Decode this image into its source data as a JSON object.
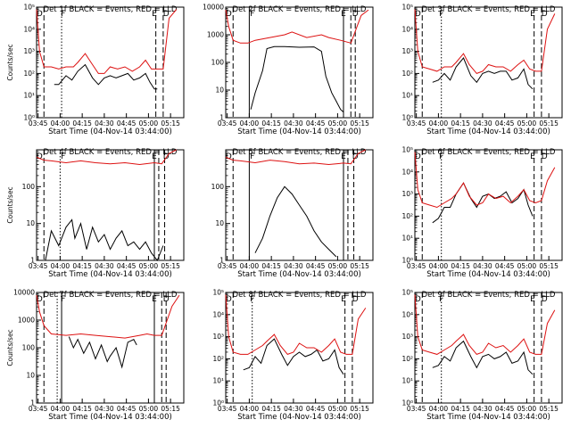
{
  "colors": {
    "events": "#000000",
    "lld": "#dd1111",
    "axes": "#000000",
    "background": "#ffffff"
  },
  "common": {
    "xlabel": "Start Time (04-Nov-14 03:44:00)",
    "xticks": [
      "03:45",
      "04:00",
      "04:15",
      "04:30",
      "04:45",
      "05:00",
      "05:15"
    ],
    "x_unit": "minutes after 03:44:00",
    "x_tick_values": [
      1,
      16,
      31,
      46,
      61,
      76,
      91
    ],
    "xlim": [
      0,
      100
    ],
    "markers": [
      {
        "label": "D",
        "x": 2
      },
      {
        "label": "F",
        "x": 18
      },
      {
        "label": "E",
        "x": 80
      },
      {
        "label": "D",
        "x": 88
      }
    ]
  },
  "chart_data": [
    {
      "type": "line",
      "scale": "log",
      "title": "Det 1f BLACK = Events, RED = LLD",
      "ylabel": "Counts/sec",
      "ylim_exp": [
        0,
        5
      ],
      "ytick_labels": [
        "10⁰",
        "10¹",
        "10²",
        "10³",
        "10⁴",
        "10⁵"
      ],
      "ytick_exp": [
        0,
        1,
        2,
        3,
        4,
        5
      ],
      "dashed_x": [
        5,
        81,
        86
      ],
      "dotted_x": [
        17
      ],
      "solid_x": [],
      "series": [
        {
          "name": "Events",
          "x": [
            12,
            15,
            20,
            24,
            28,
            33,
            38,
            42,
            46,
            50,
            54,
            58,
            62,
            66,
            70,
            74,
            77,
            80,
            82
          ],
          "y": [
            1.5,
            1.5,
            1.9,
            1.7,
            2.1,
            2.4,
            1.8,
            1.5,
            1.8,
            1.9,
            1.8,
            1.9,
            2.0,
            1.7,
            1.8,
            2.0,
            1.6,
            1.3,
            1.3
          ]
        },
        {
          "name": "LLD",
          "x": [
            0,
            2,
            5,
            10,
            15,
            20,
            25,
            28,
            33,
            37,
            42,
            46,
            50,
            55,
            60,
            65,
            70,
            74,
            78,
            82,
            86,
            90,
            95
          ],
          "y": [
            4.9,
            3.0,
            2.3,
            2.3,
            2.2,
            2.3,
            2.3,
            2.5,
            2.9,
            2.5,
            2.0,
            2.0,
            2.3,
            2.2,
            2.3,
            2.1,
            2.3,
            2.6,
            2.2,
            2.2,
            2.2,
            4.5,
            4.9
          ]
        }
      ]
    },
    {
      "type": "line",
      "scale": "log",
      "title": "Det 2f BLACK = Events, RED = LLD",
      "ylabel": "",
      "ylim_exp": [
        0,
        4
      ],
      "ytick_labels": [
        "1",
        "10",
        "100",
        "1000",
        "10000"
      ],
      "ytick_exp": [
        0,
        1,
        2,
        3,
        4
      ],
      "dashed_x": [
        5,
        85,
        88
      ],
      "dotted_x": [],
      "solid_x": [
        16,
        80
      ],
      "series": [
        {
          "name": "Events",
          "x": [
            17,
            20,
            25,
            28,
            33,
            40,
            50,
            60,
            65,
            68,
            72,
            75,
            78,
            80
          ],
          "y": [
            0.3,
            0.9,
            1.7,
            2.5,
            2.57,
            2.57,
            2.55,
            2.56,
            2.4,
            1.5,
            0.9,
            0.6,
            0.3,
            0.2
          ]
        },
        {
          "name": "LLD",
          "x": [
            0,
            2,
            5,
            10,
            15,
            20,
            30,
            40,
            45,
            55,
            65,
            70,
            78,
            85,
            92,
            97
          ],
          "y": [
            3.9,
            3.3,
            2.8,
            2.7,
            2.7,
            2.8,
            2.9,
            3.0,
            3.1,
            2.9,
            3.0,
            2.9,
            2.8,
            2.7,
            3.7,
            3.9
          ]
        }
      ]
    },
    {
      "type": "line",
      "scale": "log",
      "title": "Det 3f BLACK = Events, RED = LLD",
      "ylabel": "",
      "ylim_exp": [
        0,
        5
      ],
      "ytick_labels": [
        "10⁰",
        "10¹",
        "10²",
        "10³",
        "10⁴",
        "10⁵"
      ],
      "ytick_exp": [
        0,
        1,
        2,
        3,
        4,
        5
      ],
      "dashed_x": [
        5,
        81,
        86
      ],
      "dotted_x": [
        18
      ],
      "solid_x": [],
      "series": [
        {
          "name": "Events",
          "x": [
            12,
            16,
            20,
            24,
            28,
            33,
            38,
            42,
            46,
            50,
            54,
            58,
            62,
            66,
            70,
            74,
            77,
            80
          ],
          "y": [
            1.6,
            1.7,
            2.0,
            1.7,
            2.3,
            2.7,
            1.9,
            1.6,
            2.0,
            2.1,
            2.0,
            2.1,
            2.1,
            1.7,
            1.8,
            2.2,
            1.5,
            1.3
          ]
        },
        {
          "name": "LLD",
          "x": [
            0,
            2,
            5,
            10,
            15,
            20,
            25,
            28,
            33,
            37,
            42,
            46,
            50,
            55,
            60,
            65,
            70,
            74,
            78,
            82,
            86,
            90,
            95
          ],
          "y": [
            4.9,
            3.0,
            2.3,
            2.2,
            2.1,
            2.3,
            2.3,
            2.5,
            2.9,
            2.4,
            2.0,
            2.1,
            2.4,
            2.3,
            2.3,
            2.1,
            2.4,
            2.6,
            2.2,
            2.1,
            2.1,
            4.0,
            4.7
          ]
        }
      ]
    },
    {
      "type": "line",
      "scale": "log",
      "title": "Det 4f BLACK = Events, RED = LLD",
      "ylabel": "Counts/sec",
      "ylim_exp": [
        0,
        3
      ],
      "ytick_labels": [
        "1",
        "10",
        "100"
      ],
      "ytick_exp": [
        0,
        1,
        2
      ],
      "dashed_x": [
        5,
        83,
        87
      ],
      "dotted_x": [
        16
      ],
      "solid_x": [
        80
      ],
      "series": [
        {
          "name": "Events",
          "x": [
            6,
            10,
            15,
            20,
            24,
            26,
            30,
            34,
            38,
            42,
            46,
            50,
            54,
            58,
            62,
            66,
            70,
            74,
            78,
            82,
            86
          ],
          "y": [
            0.0,
            0.8,
            0.4,
            0.9,
            1.1,
            0.6,
            1.0,
            0.3,
            0.9,
            0.5,
            0.7,
            0.3,
            0.6,
            0.8,
            0.4,
            0.5,
            0.3,
            0.5,
            0.2,
            0.0,
            0.4
          ]
        },
        {
          "name": "LLD",
          "x": [
            0,
            5,
            10,
            20,
            30,
            40,
            50,
            60,
            70,
            80,
            85,
            90,
            95
          ],
          "y": [
            2.8,
            2.72,
            2.7,
            2.65,
            2.7,
            2.65,
            2.62,
            2.65,
            2.6,
            2.65,
            2.62,
            2.9,
            3.0
          ]
        }
      ]
    },
    {
      "type": "line",
      "scale": "log",
      "title": "Det 5f BLACK = Events, RED = LLD",
      "ylabel": "",
      "ylim_exp": [
        0,
        3
      ],
      "ytick_labels": [
        "1",
        "10",
        "100"
      ],
      "ytick_exp": [
        0,
        1,
        2
      ],
      "dashed_x": [
        5,
        83,
        87
      ],
      "dotted_x": [],
      "solid_x": [
        16,
        80
      ],
      "series": [
        {
          "name": "Events",
          "x": [
            20,
            25,
            30,
            35,
            40,
            45,
            50,
            55,
            60,
            65,
            70,
            75
          ],
          "y": [
            0.2,
            0.6,
            1.2,
            1.7,
            2.0,
            1.8,
            1.5,
            1.2,
            0.8,
            0.5,
            0.3,
            0.1
          ]
        },
        {
          "name": "LLD",
          "x": [
            0,
            5,
            10,
            20,
            30,
            40,
            50,
            60,
            70,
            80,
            85,
            90,
            95
          ],
          "y": [
            2.8,
            2.72,
            2.7,
            2.65,
            2.72,
            2.68,
            2.62,
            2.64,
            2.6,
            2.64,
            2.62,
            2.9,
            3.0
          ]
        }
      ]
    },
    {
      "type": "line",
      "scale": "log",
      "title": "Det 6f BLACK = Events, RED = LLD",
      "ylabel": "",
      "ylim_exp": [
        0,
        5
      ],
      "ytick_labels": [
        "10⁰",
        "10¹",
        "10²",
        "10³",
        "10⁴",
        "10⁵"
      ],
      "ytick_exp": [
        0,
        1,
        2,
        3,
        4,
        5
      ],
      "dashed_x": [
        5,
        81,
        86
      ],
      "dotted_x": [
        18
      ],
      "solid_x": [],
      "series": [
        {
          "name": "Events",
          "x": [
            12,
            16,
            20,
            24,
            28,
            33,
            38,
            42,
            46,
            50,
            54,
            58,
            62,
            66,
            70,
            74,
            77,
            80
          ],
          "y": [
            1.7,
            1.9,
            2.4,
            2.4,
            3.0,
            3.5,
            2.8,
            2.4,
            2.9,
            3.0,
            2.8,
            2.9,
            3.1,
            2.6,
            2.8,
            3.2,
            2.5,
            2.0
          ]
        },
        {
          "name": "LLD",
          "x": [
            0,
            2,
            5,
            10,
            15,
            20,
            25,
            28,
            33,
            37,
            42,
            46,
            50,
            55,
            60,
            65,
            70,
            74,
            78,
            82,
            86,
            90,
            95
          ],
          "y": [
            4.9,
            3.2,
            2.6,
            2.5,
            2.4,
            2.6,
            2.8,
            3.0,
            3.5,
            2.9,
            2.5,
            2.6,
            3.0,
            2.8,
            2.9,
            2.6,
            2.9,
            3.2,
            2.7,
            2.6,
            2.7,
            3.6,
            4.2
          ]
        }
      ]
    },
    {
      "type": "line",
      "scale": "log",
      "title": "Det 7f BLACK = Events, RED = LLD",
      "ylabel": "Counts/sec",
      "ylim_exp": [
        0,
        4
      ],
      "ytick_labels": [
        "1",
        "10",
        "100",
        "1000",
        "10000"
      ],
      "ytick_exp": [
        0,
        1,
        2,
        3,
        4
      ],
      "dashed_x": [
        5,
        85,
        88
      ],
      "dotted_x": [
        14
      ],
      "solid_x": [
        17,
        80
      ],
      "series": [
        {
          "name": "Events",
          "x": [
            22,
            25,
            28,
            32,
            36,
            40,
            44,
            48,
            50,
            54,
            58,
            62,
            66,
            68
          ],
          "y": [
            2.4,
            2.0,
            2.3,
            1.8,
            2.2,
            1.6,
            2.1,
            1.5,
            1.7,
            2.0,
            1.3,
            2.2,
            2.3,
            2.1
          ]
        },
        {
          "name": "LLD",
          "x": [
            0,
            2,
            5,
            10,
            20,
            30,
            40,
            50,
            60,
            70,
            75,
            80,
            85,
            92,
            97
          ],
          "y": [
            3.9,
            3.3,
            2.8,
            2.5,
            2.45,
            2.5,
            2.45,
            2.4,
            2.35,
            2.45,
            2.5,
            2.45,
            2.45,
            3.5,
            3.9
          ]
        }
      ]
    },
    {
      "type": "line",
      "scale": "log",
      "title": "Det 8f BLACK = Events, RED = LLD",
      "ylabel": "",
      "ylim_exp": [
        0,
        5
      ],
      "ytick_labels": [
        "10⁰",
        "10¹",
        "10²",
        "10³",
        "10⁴",
        "10⁵"
      ],
      "ytick_exp": [
        0,
        1,
        2,
        3,
        4,
        5
      ],
      "dashed_x": [
        5,
        81,
        86
      ],
      "dotted_x": [
        18
      ],
      "solid_x": [],
      "series": [
        {
          "name": "Events",
          "x": [
            12,
            16,
            20,
            24,
            28,
            33,
            38,
            42,
            46,
            50,
            54,
            58,
            62,
            66,
            70,
            74,
            77,
            80
          ],
          "y": [
            1.5,
            1.6,
            2.1,
            1.8,
            2.6,
            2.9,
            2.2,
            1.7,
            2.1,
            2.3,
            2.1,
            2.2,
            2.4,
            1.9,
            2.0,
            2.4,
            1.6,
            1.3
          ]
        },
        {
          "name": "LLD",
          "x": [
            0,
            2,
            5,
            10,
            15,
            20,
            25,
            28,
            33,
            37,
            42,
            46,
            50,
            55,
            60,
            65,
            70,
            74,
            78,
            82,
            86,
            90,
            95
          ],
          "y": [
            4.9,
            3.0,
            2.3,
            2.2,
            2.2,
            2.4,
            2.6,
            2.8,
            3.1,
            2.6,
            2.2,
            2.3,
            2.7,
            2.5,
            2.5,
            2.3,
            2.6,
            2.9,
            2.3,
            2.2,
            2.2,
            3.8,
            4.3
          ]
        }
      ]
    },
    {
      "type": "line",
      "scale": "log",
      "title": "Det 9f BLACK = Events, RED = LLD",
      "ylabel": "",
      "ylim_exp": [
        0,
        5
      ],
      "ytick_labels": [
        "10⁰",
        "10¹",
        "10²",
        "10³",
        "10⁴",
        "10⁵"
      ],
      "ytick_exp": [
        0,
        1,
        2,
        3,
        4,
        5
      ],
      "dashed_x": [
        5,
        81,
        86
      ],
      "dotted_x": [
        18
      ],
      "solid_x": [],
      "series": [
        {
          "name": "Events",
          "x": [
            12,
            16,
            20,
            24,
            28,
            33,
            38,
            42,
            46,
            50,
            54,
            58,
            62,
            66,
            70,
            74,
            77,
            80
          ],
          "y": [
            1.6,
            1.7,
            2.1,
            1.9,
            2.5,
            2.8,
            2.1,
            1.6,
            2.1,
            2.2,
            2.0,
            2.1,
            2.3,
            1.8,
            1.9,
            2.3,
            1.5,
            1.3
          ]
        },
        {
          "name": "LLD",
          "x": [
            0,
            2,
            5,
            10,
            15,
            20,
            25,
            28,
            33,
            37,
            42,
            46,
            50,
            55,
            60,
            65,
            70,
            74,
            78,
            82,
            86,
            90,
            95
          ],
          "y": [
            4.9,
            3.0,
            2.4,
            2.3,
            2.2,
            2.4,
            2.6,
            2.8,
            3.1,
            2.6,
            2.2,
            2.3,
            2.7,
            2.5,
            2.6,
            2.3,
            2.6,
            2.9,
            2.3,
            2.2,
            2.2,
            3.6,
            4.2
          ]
        }
      ]
    }
  ]
}
